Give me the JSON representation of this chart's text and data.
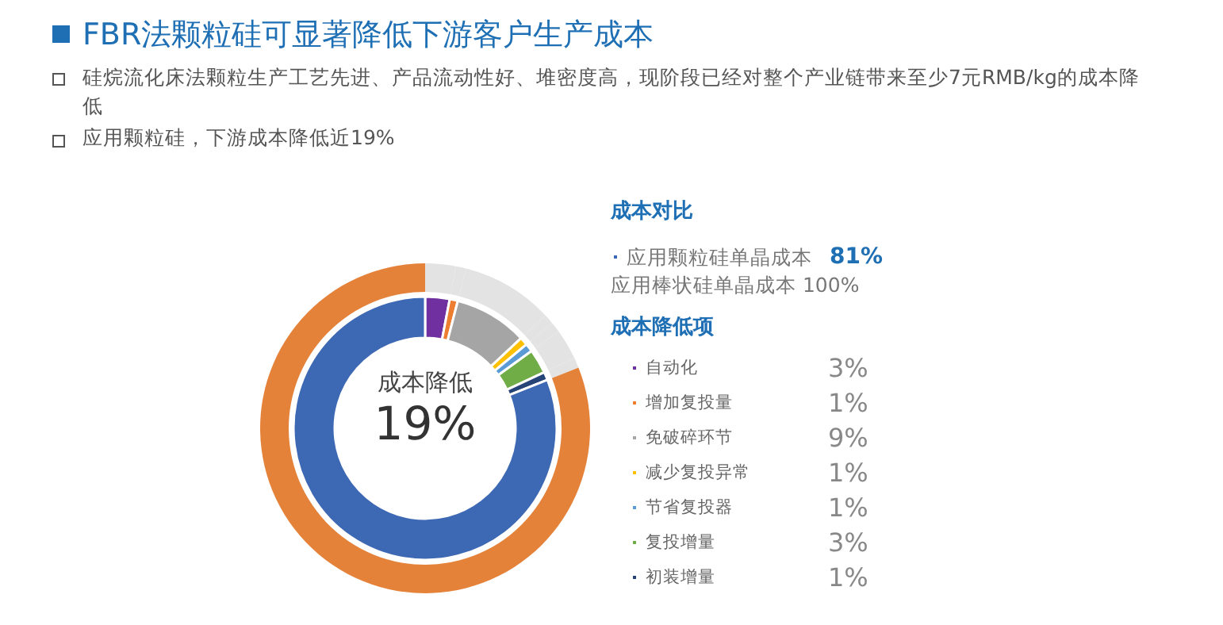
{
  "chart_data": {
    "type": "donut",
    "title": "FBR法颗粒硅可显著降低下游客户生产成本",
    "annotations": [
      "硅烷流化床法颗粒生产工艺先进、产品流动性好、堆密度高，现阶段已经对整个产业链带来至少7元RMB/kg的成本降低",
      "应用颗粒硅，下游成本降低近19%",
      "成本对比",
      "应用棒状硅单晶成本 100%",
      "成本降低项",
      "成本降低",
      "19%"
    ],
    "categories": [
      "自动化",
      "增加复投量",
      "免破碎环节",
      "减少复投异常",
      "节省复投器",
      "复投增量",
      "初装增量",
      "应用颗粒硅单晶成本"
    ],
    "series": [
      {
        "values": [
          3,
          1,
          9,
          1,
          1,
          3,
          1,
          81
        ],
        "colors": [
          "#7030a0",
          "#ed7d31",
          "#a5a5a5",
          "#ffc000",
          "#5b9bd5",
          "#70ad47",
          "#264478",
          "#3d68b3"
        ],
        "value_labels": [
          "3%",
          "1%",
          "9%",
          "1%",
          "1%",
          "3%",
          "1%",
          "81%"
        ]
      },
      {
        "values": [
          3,
          1,
          9,
          1,
          1,
          3,
          1,
          81
        ],
        "colors": [
          "#e3e3e3",
          "#e3e3e3",
          "#e3e3e3",
          "#e3e3e3",
          "#e3e3e3",
          "#e3e3e3",
          "#e3e3e3",
          "#e5823a"
        ]
      }
    ],
    "legend": "right"
  }
}
